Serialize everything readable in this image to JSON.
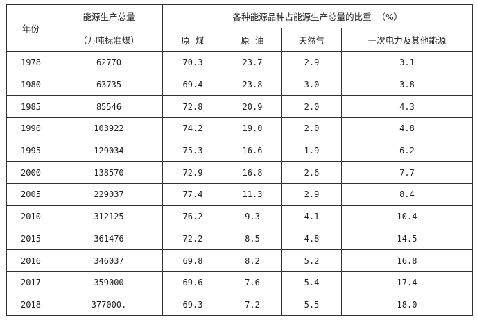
{
  "header": {
    "year": "年份",
    "total": "能源生产总量",
    "total_unit": "（万吨标准煤）",
    "share_group": "各种能源品种占能源生产总量的比重  （%）",
    "columns": [
      "原  煤",
      "原  油",
      "天然气",
      "一次电力及其他能源"
    ]
  },
  "rows": [
    [
      "1978",
      "62770",
      "70.3",
      "23.7",
      "2.9",
      "3.1"
    ],
    [
      "1980",
      "63735",
      "69.4",
      "23.8",
      "3.0",
      "3.8"
    ],
    [
      "1985",
      "85546",
      "72.8",
      "20.9",
      "2.0",
      "4.3"
    ],
    [
      "1990",
      "103922",
      "74.2",
      "19.0",
      "2.0",
      "4.8"
    ],
    [
      "1995",
      "129034",
      "75.3",
      "16.6",
      "1.9",
      "6.2"
    ],
    [
      "2000",
      "138570",
      "72.9",
      "16.8",
      "2.6",
      "7.7"
    ],
    [
      "2005",
      "229037",
      "77.4",
      "11.3",
      "2.9",
      "8.4"
    ],
    [
      "2010",
      "312125",
      "76.2",
      "9.3",
      "4.1",
      "10.4"
    ],
    [
      "2015",
      "361476",
      "72.2",
      "8.5",
      "4.8",
      "14.5"
    ],
    [
      "2016",
      "346037",
      "69.8",
      "8.2",
      "5.2",
      "16.8"
    ],
    [
      "2017",
      "359000",
      "69.6",
      "7.6",
      "5.4",
      "17.4"
    ],
    [
      "2018",
      "377000.",
      "69.3",
      "7.2",
      "5.5",
      "18.0"
    ]
  ]
}
